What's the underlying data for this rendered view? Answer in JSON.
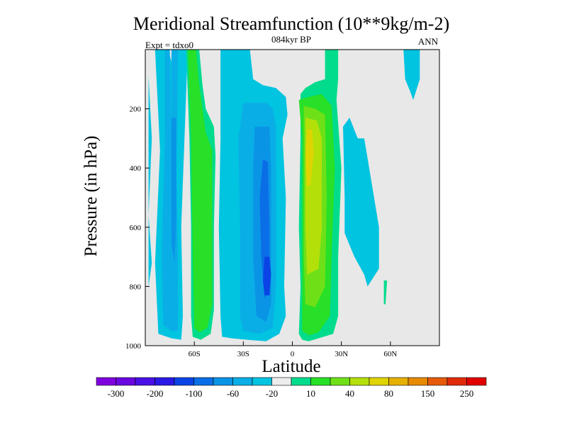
{
  "chart_data": {
    "type": "contour",
    "title": "Meridional Streamfunction (10**9kg/m-2)",
    "subtitle": "084kyr BP",
    "left_label": "Expt = tdxo0",
    "right_label": "ANN",
    "xlabel": "Latitude",
    "ylabel": "Pressure (in hPa)",
    "xlim": [
      -90,
      90
    ],
    "ylim": [
      1000,
      0
    ],
    "x_ticks": [
      {
        "value": -60,
        "label": "60S"
      },
      {
        "value": -30,
        "label": "30S"
      },
      {
        "value": 0,
        "label": "0"
      },
      {
        "value": 30,
        "label": "30N"
      },
      {
        "value": 60,
        "label": "60N"
      }
    ],
    "y_ticks": [
      {
        "value": 200,
        "label": "200"
      },
      {
        "value": 400,
        "label": "400"
      },
      {
        "value": 600,
        "label": "600"
      },
      {
        "value": 800,
        "label": "800"
      },
      {
        "value": 1000,
        "label": "1000"
      }
    ],
    "background_color": "#e8e8e8",
    "colorbar": {
      "colors": [
        "#7f00df",
        "#6a06e0",
        "#4a10e6",
        "#2a18e6",
        "#0a44e6",
        "#0a6ee6",
        "#0a94e6",
        "#0aaee6",
        "#00c4e0",
        "#ececec",
        "#00dc8c",
        "#28e028",
        "#6ee018",
        "#b4e00a",
        "#e0d400",
        "#e6b000",
        "#e68a00",
        "#e65a0a",
        "#e02a0a",
        "#e00000"
      ],
      "labels": [
        {
          "label": "-300",
          "boundary": 1
        },
        {
          "label": "-200",
          "boundary": 3
        },
        {
          "label": "-100",
          "boundary": 5
        },
        {
          "label": "-60",
          "boundary": 7
        },
        {
          "label": "-20",
          "boundary": 9
        },
        {
          "label": "10",
          "boundary": 11
        },
        {
          "label": "40",
          "boundary": 13
        },
        {
          "label": "80",
          "boundary": 15
        },
        {
          "label": "150",
          "boundary": 17
        },
        {
          "label": "250",
          "boundary": 19
        }
      ]
    },
    "contours": [
      {
        "region": "southern-polar-cell",
        "sign": "negative",
        "outer_lat": [
          -86,
          -64
        ],
        "p_range": [
          0,
          970
        ],
        "core_level": "-60",
        "core_lat": -72,
        "core_p": 550
      },
      {
        "region": "southern-ferrel-cell",
        "sign": "positive",
        "outer_lat": [
          -64,
          -48
        ],
        "p_range": [
          0,
          975
        ],
        "core_level": "40",
        "core_lat": -57,
        "core_p": 500
      },
      {
        "region": "southern-hadley-cell",
        "sign": "negative",
        "outer_lat": [
          -44,
          -5
        ],
        "p_range": [
          0,
          985
        ],
        "core_level": "-100",
        "core_lat": -14,
        "core_p": 780
      },
      {
        "region": "northern-hadley-cell",
        "sign": "positive",
        "outer_lat": [
          3,
          30
        ],
        "p_range": [
          0,
          985
        ],
        "core_level": "80",
        "core_lat": 10,
        "core_p": 450
      },
      {
        "region": "northern-ferrel-cell",
        "sign": "negative",
        "outer_lat": [
          30,
          52
        ],
        "p_range": [
          260,
          800
        ],
        "core_level": "-20",
        "core_lat": 36,
        "core_p": 420
      },
      {
        "region": "northern-polar-cell",
        "sign": "negative",
        "outer_lat": [
          68,
          77
        ],
        "p_range": [
          0,
          170
        ],
        "core_level": "-20",
        "core_lat": 72,
        "core_p": 80
      }
    ]
  }
}
